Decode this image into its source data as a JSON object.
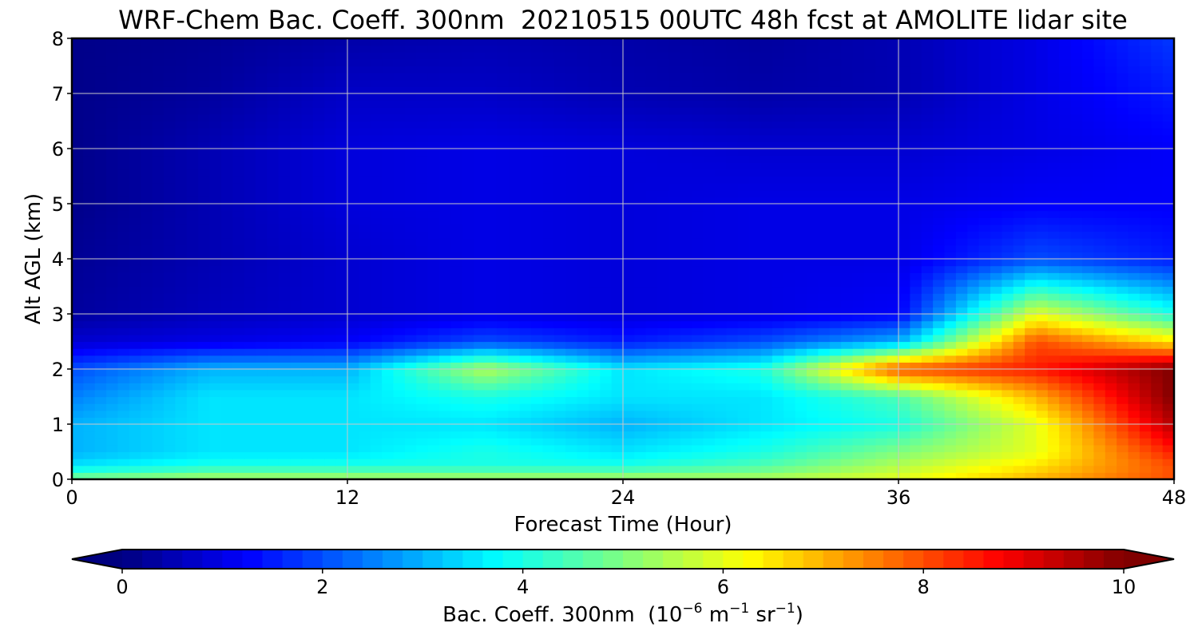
{
  "chart_data": {
    "type": "heatmap",
    "title": "WRF-Chem Bac. Coeff. 300nm  20210515 00UTC 48h fcst at AMOLITE lidar site",
    "xlabel": "Forecast Time (Hour)",
    "ylabel": "Alt AGL (km)",
    "xlim": [
      0,
      48
    ],
    "ylim": [
      0,
      8
    ],
    "x_ticks": [
      "0",
      "12",
      "24",
      "36",
      "48"
    ],
    "y_ticks": [
      "0",
      "1",
      "2",
      "3",
      "4",
      "5",
      "6",
      "7",
      "8"
    ],
    "grid": true,
    "colormap": "jet",
    "colorbar": {
      "orientation": "horizontal",
      "placement": "bottom",
      "vmin": 0,
      "vmax": 10,
      "extend": "both",
      "ticks": [
        "0",
        "2",
        "4",
        "6",
        "8",
        "10"
      ],
      "label_main": "Bac. Coeff. 300nm  (10",
      "label_exp1": "−6",
      "label_mid": " m",
      "label_exp2": "−1",
      "label_mid2": " sr",
      "label_exp3": "−1",
      "label_end": ")"
    },
    "x": [
      0,
      6,
      12,
      18,
      24,
      30,
      36,
      42,
      48
    ],
    "y": [
      0,
      0.25,
      0.5,
      1,
      1.5,
      2,
      2.5,
      3,
      4,
      5,
      6,
      7,
      8
    ],
    "z": [
      [
        5.0,
        5.5,
        5.5,
        5.5,
        5.5,
        5.5,
        6.0,
        7.0,
        8.0
      ],
      [
        3.5,
        4.0,
        4.0,
        4.0,
        4.0,
        4.5,
        5.5,
        6.5,
        8.0
      ],
      [
        3.0,
        3.5,
        3.5,
        4.0,
        3.5,
        4.0,
        5.0,
        6.0,
        8.5
      ],
      [
        3.0,
        3.5,
        3.5,
        3.5,
        3.0,
        3.5,
        4.0,
        6.0,
        9.5
      ],
      [
        2.5,
        3.5,
        3.5,
        4.0,
        3.5,
        3.5,
        4.5,
        7.0,
        10.0
      ],
      [
        2.0,
        3.0,
        3.0,
        5.5,
        3.5,
        4.0,
        8.0,
        8.5,
        10.0
      ],
      [
        0.8,
        1.0,
        1.2,
        2.0,
        1.5,
        2.0,
        3.0,
        8.0,
        6.5
      ],
      [
        0.3,
        0.6,
        0.8,
        1.0,
        0.9,
        1.0,
        1.2,
        6.0,
        4.0
      ],
      [
        0.2,
        0.5,
        0.8,
        1.0,
        0.9,
        1.0,
        1.0,
        2.0,
        1.5
      ],
      [
        0.1,
        0.5,
        0.9,
        1.0,
        0.9,
        1.0,
        1.0,
        1.2,
        1.2
      ],
      [
        0.1,
        0.5,
        0.9,
        1.0,
        0.9,
        0.8,
        0.8,
        1.0,
        1.2
      ],
      [
        0.1,
        0.3,
        0.7,
        0.7,
        0.5,
        0.4,
        0.5,
        1.0,
        1.5
      ],
      [
        0.1,
        0.2,
        0.4,
        0.5,
        0.4,
        0.3,
        0.5,
        1.0,
        1.8
      ]
    ]
  }
}
